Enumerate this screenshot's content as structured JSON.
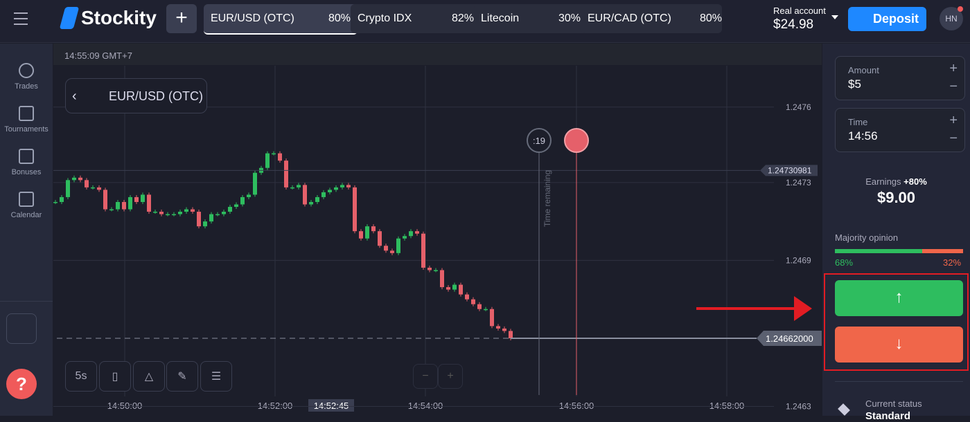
{
  "header": {
    "logo": "Stockity",
    "tabs": [
      {
        "name": "EUR/USD (OTC)",
        "payout": "80%"
      },
      {
        "name": "Crypto IDX",
        "payout": "82%"
      },
      {
        "name": "Litecoin",
        "payout": "30%"
      },
      {
        "name": "EUR/CAD (OTC)",
        "payout": "80%"
      }
    ],
    "account": {
      "label": "Real account",
      "balance": "$24.98"
    },
    "deposit": "Deposit",
    "avatar": "HN"
  },
  "sidebar": {
    "items": [
      "Trades",
      "Tournaments",
      "Bonuses",
      "Calendar"
    ]
  },
  "chart": {
    "type": "candlestick",
    "clock": "14:55:09 GMT+7",
    "asset": "EUR/USD (OTC)",
    "closes": [
      1.24718,
      1.2472,
      1.24727,
      1.24728,
      1.24727,
      1.24724,
      1.24724,
      1.24723,
      1.24715,
      1.24715,
      1.24718,
      1.24715,
      1.2472,
      1.24718,
      1.24721,
      1.24714,
      1.24714,
      1.24713,
      1.24713,
      1.24713,
      1.24714,
      1.24715,
      1.24714,
      1.24708,
      1.2471,
      1.24713,
      1.24713,
      1.24714,
      1.24716,
      1.24717,
      1.2472,
      1.24721,
      1.2473,
      1.24732,
      1.24738,
      1.24738,
      1.24735,
      1.24724,
      1.24724,
      1.24725,
      1.24717,
      1.24718,
      1.2472,
      1.24722,
      1.24723,
      1.24724,
      1.24725,
      1.24724,
      1.24706,
      1.24703,
      1.24708,
      1.24706,
      1.247,
      1.24698,
      1.24697,
      1.24703,
      1.24704,
      1.24706,
      1.24705,
      1.24691,
      1.2469,
      1.2469,
      1.24683,
      1.24682,
      1.24684,
      1.2468,
      1.24678,
      1.24676,
      1.24674,
      1.24674,
      1.24667,
      1.24666,
      1.24665,
      1.24662
    ],
    "up_color": "#2ebd5f",
    "down_color": "#e5606a",
    "ylim": [
      1.24631,
      1.24774
    ],
    "yticks": [
      {
        "value": 1.24757,
        "label": "1.2476"
      },
      {
        "value": 1.24726,
        "label": "1.2473"
      },
      {
        "value": 1.24694,
        "label": "1.2469"
      },
      {
        "value": 1.24634,
        "label": "1.2463"
      }
    ],
    "xticks": [
      "14:50:00",
      "14:52:00",
      "14:52:45",
      "14:54:00",
      "14:56:00",
      "14:58:00"
    ],
    "countdown": ":19",
    "time_remaining": "Time remaining",
    "price_line": 1.24730981,
    "current_price": {
      "value": 1.24662,
      "label": "1.24662000"
    },
    "timeframe": "5s"
  },
  "panel": {
    "amount": {
      "label": "Amount",
      "value": "$5"
    },
    "time": {
      "label": "Time",
      "value": "14:56"
    },
    "earnings": {
      "label": "Earnings",
      "payout": "+80%",
      "value": "$9.00"
    },
    "majority": {
      "label": "Majority opinion",
      "up": {
        "value": 68,
        "label": "68%"
      },
      "down": {
        "value": 32,
        "label": "32%"
      }
    },
    "status": {
      "label": "Current status",
      "value": "Standard"
    }
  }
}
